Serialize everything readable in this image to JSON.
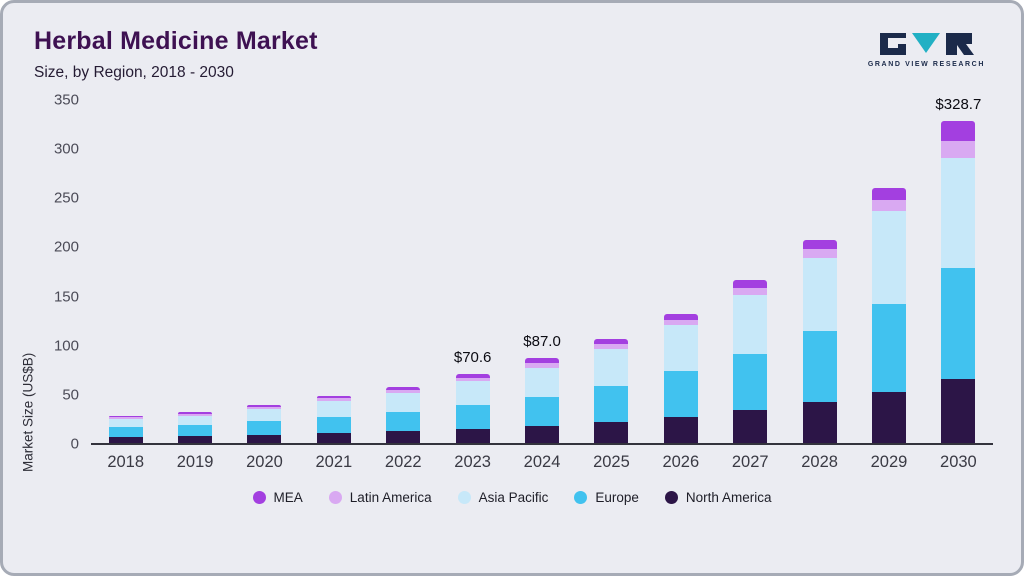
{
  "header": {
    "title": "Herbal Medicine Market",
    "subtitle": "Size, by Region, 2018 - 2030",
    "logo_text": "GRAND VIEW RESEARCH"
  },
  "colors": {
    "title": "#3e1152",
    "background": "#ebecf2",
    "axis": "#33333d",
    "logo_navy": "#1b2a4a",
    "logo_teal": "#21b0c4"
  },
  "chart_data": {
    "type": "bar",
    "stacked": true,
    "title": "Herbal Medicine Market Size, by Region, 2018 - 2030",
    "xlabel": "",
    "ylabel": "Market Size (US$B)",
    "ylim": [
      0,
      350
    ],
    "yticks": [
      0,
      50,
      100,
      150,
      200,
      250,
      300,
      350
    ],
    "grid": false,
    "legend_position": "bottom",
    "categories": [
      "2018",
      "2019",
      "2020",
      "2021",
      "2022",
      "2023",
      "2024",
      "2025",
      "2026",
      "2027",
      "2028",
      "2029",
      "2030"
    ],
    "series": [
      {
        "name": "North America",
        "color": "#2c1547",
        "values": [
          6,
          7,
          8,
          10,
          12,
          14,
          17,
          21,
          27,
          34,
          42,
          52,
          65
        ]
      },
      {
        "name": "Europe",
        "color": "#41c2ef",
        "values": [
          10,
          11,
          14,
          17,
          20,
          25,
          30,
          37,
          46,
          57,
          72,
          90,
          114
        ]
      },
      {
        "name": "Asia Pacific",
        "color": "#c7e8f9",
        "values": [
          9,
          10,
          13,
          16,
          19,
          24,
          30,
          38,
          47,
          60,
          75,
          95,
          112
        ]
      },
      {
        "name": "Latin America",
        "color": "#d9a9f2",
        "values": [
          1.5,
          2,
          2,
          2.5,
          3,
          3.5,
          4.5,
          5,
          6,
          7,
          8.5,
          10.5,
          17
        ]
      },
      {
        "name": "MEA",
        "color": "#a33fe0",
        "values": [
          1.5,
          2,
          2,
          2.5,
          3,
          4.1,
          5.5,
          5,
          6,
          8,
          9.5,
          12.5,
          20.7
        ]
      }
    ],
    "annotations": [
      {
        "category": "2023",
        "label": "$70.6",
        "value": 70.6
      },
      {
        "category": "2024",
        "label": "$87.0",
        "value": 87.0
      },
      {
        "category": "2030",
        "label": "$328.7",
        "value": 328.7
      }
    ],
    "legend": [
      "MEA",
      "Latin America",
      "Asia Pacific",
      "Europe",
      "North America"
    ]
  }
}
